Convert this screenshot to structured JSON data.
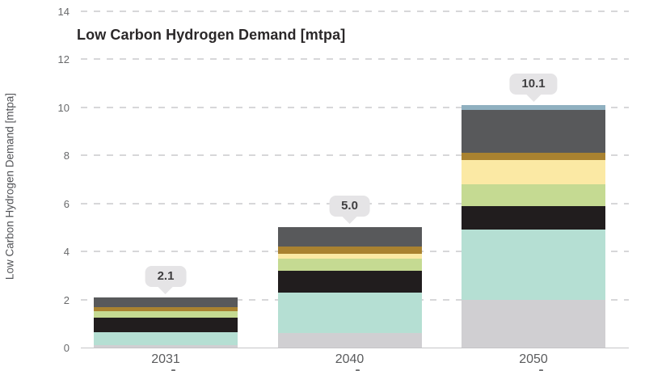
{
  "chart_data": {
    "type": "bar",
    "stacked": true,
    "title": "Low Carbon Hydrogen Demand [mtpa]",
    "ylabel": "Low Carbon Hydrogen Demand [mtpa]",
    "xlabel": "",
    "categories": [
      "2031",
      "2040",
      "2050"
    ],
    "totals": [
      "2.1",
      "5.0",
      "10.1"
    ],
    "series": [
      {
        "name": "light-gray",
        "color": "#d0cfd2",
        "values": [
          0.1,
          0.6,
          2.0
        ]
      },
      {
        "name": "teal",
        "color": "#b5dfd3",
        "values": [
          0.55,
          1.7,
          2.9
        ]
      },
      {
        "name": "black",
        "color": "#211d1e",
        "values": [
          0.6,
          0.9,
          1.0
        ]
      },
      {
        "name": "yellow-green",
        "color": "#c5da92",
        "values": [
          0.25,
          0.5,
          0.9
        ]
      },
      {
        "name": "pale-yellow",
        "color": "#fbe9a4",
        "values": [
          0.0,
          0.2,
          1.0
        ]
      },
      {
        "name": "gold-brown",
        "color": "#a98230",
        "values": [
          0.2,
          0.3,
          0.3
        ]
      },
      {
        "name": "dark-gray",
        "color": "#58595b",
        "values": [
          0.4,
          0.8,
          1.8
        ]
      },
      {
        "name": "blue-gray",
        "color": "#8fb0c0",
        "values": [
          0.0,
          0.0,
          0.2
        ]
      }
    ],
    "ylim": [
      0,
      14
    ],
    "yticks": [
      0,
      2,
      4,
      6,
      8,
      10,
      12,
      14
    ],
    "grid": "horizontal-dashed",
    "legend": "none",
    "colors": {
      "grid": "#d7d7d9",
      "axis": "#c5c5c7",
      "bubble_bg": "#e5e4e6",
      "bubble_text": "#3f3e40",
      "tick_text": "#68696b",
      "category_text": "#5a5b5d",
      "title_text": "#2b2829"
    }
  }
}
